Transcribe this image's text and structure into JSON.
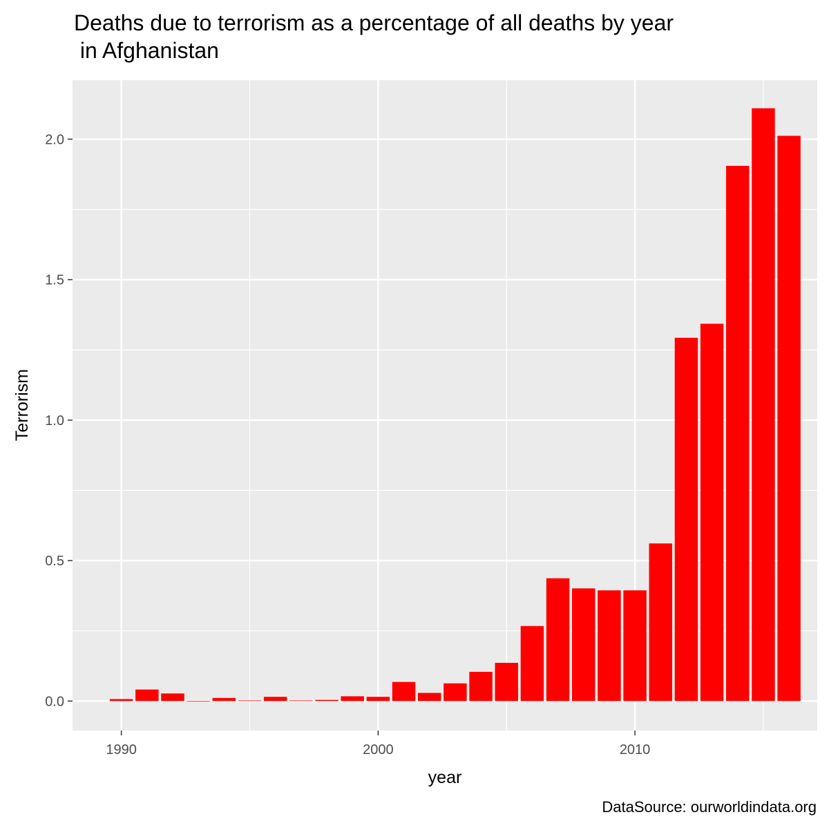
{
  "chart_data": {
    "type": "bar",
    "title_line1": "Deaths due to terrorism as a percentage of all deaths by year",
    "title_line2": " in Afghanistan",
    "xlabel": "year",
    "ylabel": "Terrorism",
    "caption": "DataSource: ourworldindata.org",
    "x_ticks": [
      {
        "value": 1990,
        "label": "1990"
      },
      {
        "value": 2000,
        "label": "2000"
      },
      {
        "value": 2010,
        "label": "2010"
      }
    ],
    "y_ticks": [
      {
        "value": 0,
        "label": "0.0"
      },
      {
        "value": 0.5,
        "label": "0.5"
      },
      {
        "value": 1,
        "label": "1.0"
      },
      {
        "value": 1.5,
        "label": "1.5"
      },
      {
        "value": 2,
        "label": "2.0"
      }
    ],
    "xlim": [
      1988.1,
      2017.1
    ],
    "ylim": [
      -0.105,
      2.21
    ],
    "bar_color": "#ff0000",
    "panel_background": "#ebebeb",
    "grid": true,
    "series": [
      {
        "x": [
          1990,
          1991,
          1992,
          1993,
          1994,
          1995,
          1996,
          1997,
          1998,
          1999,
          2000,
          2001,
          2002,
          2003,
          2004,
          2005,
          2006,
          2007,
          2008,
          2009,
          2010,
          2011,
          2012,
          2013,
          2014,
          2015,
          2016
        ],
        "values": [
          0.007,
          0.041,
          0.027,
          0.0,
          0.011,
          0.002,
          0.015,
          0.002,
          0.004,
          0.017,
          0.015,
          0.068,
          0.029,
          0.063,
          0.104,
          0.136,
          0.267,
          0.437,
          0.401,
          0.394,
          0.394,
          0.561,
          1.293,
          1.343,
          1.905,
          2.11,
          2.012
        ]
      }
    ]
  }
}
